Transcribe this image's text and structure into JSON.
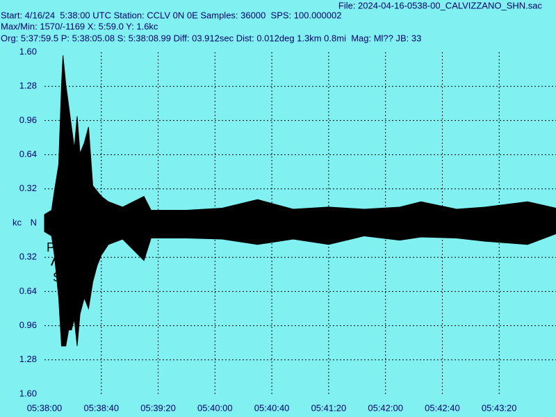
{
  "chart_data": {
    "type": "line",
    "header": [
      "File: 2024-04-16-0538-00_CALVIZZANO_SHN.sac",
      "Start: 4/16/24  5:38:00 UTC Station: CCLV 0N 0E Samples: 36000  SPS: 100.000002",
      "Max/Min: 1570/-1169 X: 5:59.0 Y: 1.6kc",
      "Org: 5:37:59.5 P: 5:38:05.08 S: 5:38:08.99 Diff: 03.912sec Dist: 0.012deg 1.3km 0.8mi  Mag: Ml?? JB: 33"
    ],
    "y_label": "kc",
    "annotations": [
      "P",
      "S"
    ],
    "x": [
      0,
      5,
      7,
      10,
      12,
      13,
      15,
      17,
      19,
      21,
      23,
      25,
      28,
      31,
      34,
      37,
      40,
      45,
      55,
      70,
      75,
      100,
      125,
      150,
      175,
      200,
      225,
      250,
      265,
      290,
      310,
      340,
      360
    ],
    "series": [
      {
        "name": "max",
        "color": "#000000",
        "values": [
          0.08,
          0.12,
          0.3,
          0.55,
          1.3,
          1.57,
          1.3,
          1.1,
          0.9,
          0.7,
          1.0,
          0.65,
          0.75,
          0.9,
          0.35,
          0.3,
          0.25,
          0.2,
          0.15,
          0.25,
          0.12,
          0.12,
          0.14,
          0.22,
          0.13,
          0.15,
          0.13,
          0.15,
          0.2,
          0.13,
          0.15,
          0.2,
          0.14
        ]
      },
      {
        "name": "min",
        "color": "#000000",
        "values": [
          -0.08,
          -0.12,
          -0.3,
          -0.7,
          -1.15,
          -1.15,
          -1.15,
          -1.0,
          -1.0,
          -0.9,
          -1.15,
          -0.85,
          -0.7,
          -0.8,
          -0.55,
          -0.4,
          -0.3,
          -0.2,
          -0.15,
          -0.35,
          -0.14,
          -0.14,
          -0.15,
          -0.2,
          -0.15,
          -0.2,
          -0.12,
          -0.16,
          -0.13,
          -0.14,
          -0.17,
          -0.2,
          -0.1
        ]
      }
    ],
    "xlim": [
      0,
      360
    ],
    "xticks": [
      {
        "value": 0,
        "label": "05:38:00"
      },
      {
        "value": 40,
        "label": "05:38:40"
      },
      {
        "value": 80,
        "label": "05:39:20"
      },
      {
        "value": 120,
        "label": "05:40:00"
      },
      {
        "value": 160,
        "label": "05:40:40"
      },
      {
        "value": 200,
        "label": "05:41:20"
      },
      {
        "value": 240,
        "label": "05:42:00"
      },
      {
        "value": 280,
        "label": "05:42:40"
      },
      {
        "value": 320,
        "label": "05:43:20"
      }
    ],
    "ylim": [
      -1.6,
      1.6
    ],
    "yticks": [
      {
        "value": 1.6,
        "label": "1.60"
      },
      {
        "value": 1.28,
        "label": "1.28"
      },
      {
        "value": 0.96,
        "label": "0.96"
      },
      {
        "value": 0.64,
        "label": "0.64"
      },
      {
        "value": 0.32,
        "label": "0.32"
      },
      {
        "value": 0,
        "label": "N"
      },
      {
        "value": -0.32,
        "label": "0.32"
      },
      {
        "value": -0.64,
        "label": "0.64"
      },
      {
        "value": -0.96,
        "label": "0.96"
      },
      {
        "value": -1.28,
        "label": "1.28"
      },
      {
        "value": -1.6,
        "label": "1.60"
      }
    ],
    "grid": true
  }
}
